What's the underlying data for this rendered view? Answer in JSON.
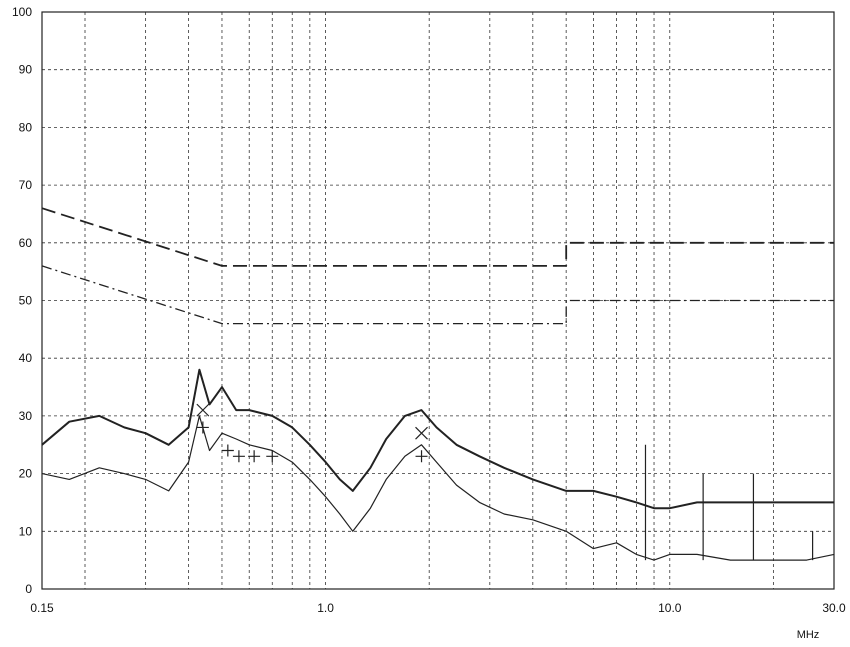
{
  "chart_data": {
    "type": "line",
    "x_scale": "log",
    "xlim": [
      0.15,
      30.0
    ],
    "ylim": [
      0,
      100
    ],
    "grid": true,
    "x_unit_label": "MHz",
    "x_tick_labels": [
      {
        "value": 0.15,
        "label": "0.15"
      },
      {
        "value": 1.0,
        "label": "1.0"
      },
      {
        "value": 10.0,
        "label": "10.0"
      },
      {
        "value": 30.0,
        "label": "30.0"
      }
    ],
    "y_ticks": [
      0,
      10,
      20,
      30,
      40,
      50,
      60,
      70,
      80,
      90,
      100
    ],
    "x_minor_grid": [
      0.2,
      0.3,
      0.4,
      0.5,
      0.6,
      0.7,
      0.8,
      0.9,
      2,
      3,
      4,
      5,
      6,
      7,
      8,
      9,
      20
    ],
    "colors": {
      "trace": "#222222",
      "limit": "#222222",
      "grid": "#333333"
    },
    "series": [
      {
        "style": "dashed",
        "x": [
          0.15,
          0.5,
          0.5,
          5.0,
          5.0,
          30.0
        ],
        "y": [
          66,
          56,
          56,
          56,
          60,
          60
        ]
      },
      {
        "style": "dashdot",
        "x": [
          0.15,
          0.5,
          0.5,
          5.0,
          5.0,
          30.0
        ],
        "y": [
          56,
          46,
          46,
          46,
          50,
          50
        ]
      },
      {
        "style": "solid-heavy",
        "x": [
          0.15,
          0.18,
          0.22,
          0.26,
          0.3,
          0.35,
          0.4,
          0.43,
          0.46,
          0.5,
          0.55,
          0.6,
          0.7,
          0.8,
          0.9,
          1.0,
          1.1,
          1.2,
          1.35,
          1.5,
          1.7,
          1.9,
          2.1,
          2.4,
          2.8,
          3.3,
          4.0,
          5.0,
          6.0,
          7.0,
          8.0,
          9.0,
          10.0,
          12.0,
          15.0,
          20.0,
          25.0,
          30.0
        ],
        "y": [
          25,
          29,
          30,
          28,
          27,
          25,
          28,
          38,
          32,
          35,
          31,
          31,
          30,
          28,
          25,
          22,
          19,
          17,
          21,
          26,
          30,
          31,
          28,
          25,
          23,
          21,
          19,
          17,
          17,
          16,
          15,
          14,
          14,
          15,
          15,
          15,
          15,
          15
        ]
      },
      {
        "style": "solid",
        "x": [
          0.15,
          0.18,
          0.22,
          0.26,
          0.3,
          0.35,
          0.4,
          0.43,
          0.46,
          0.5,
          0.55,
          0.6,
          0.7,
          0.8,
          0.9,
          1.0,
          1.1,
          1.2,
          1.35,
          1.5,
          1.7,
          1.9,
          2.1,
          2.4,
          2.8,
          3.3,
          4.0,
          5.0,
          6.0,
          7.0,
          8.0,
          9.0,
          10.0,
          12.0,
          15.0,
          20.0,
          25.0,
          30.0
        ],
        "y": [
          20,
          19,
          21,
          20,
          19,
          17,
          22,
          30,
          24,
          27,
          26,
          25,
          24,
          22,
          19,
          16,
          13,
          10,
          14,
          19,
          23,
          25,
          22,
          18,
          15,
          13,
          12,
          10,
          7,
          8,
          6,
          5,
          6,
          6,
          5,
          5,
          5,
          6
        ]
      },
      {
        "style": "spikes",
        "x": [
          8.5,
          12.5,
          17.5,
          26.0
        ],
        "y": [
          25,
          20,
          20,
          10
        ]
      }
    ],
    "markers": [
      {
        "symbol": "x",
        "x": 0.44,
        "y": 31
      },
      {
        "symbol": "x",
        "x": 1.9,
        "y": 27
      },
      {
        "symbol": "+",
        "x": 0.44,
        "y": 28
      },
      {
        "symbol": "+",
        "x": 0.52,
        "y": 24
      },
      {
        "symbol": "+",
        "x": 0.56,
        "y": 23
      },
      {
        "symbol": "+",
        "x": 0.62,
        "y": 23
      },
      {
        "symbol": "+",
        "x": 0.7,
        "y": 23
      },
      {
        "symbol": "+",
        "x": 1.9,
        "y": 23
      }
    ]
  }
}
